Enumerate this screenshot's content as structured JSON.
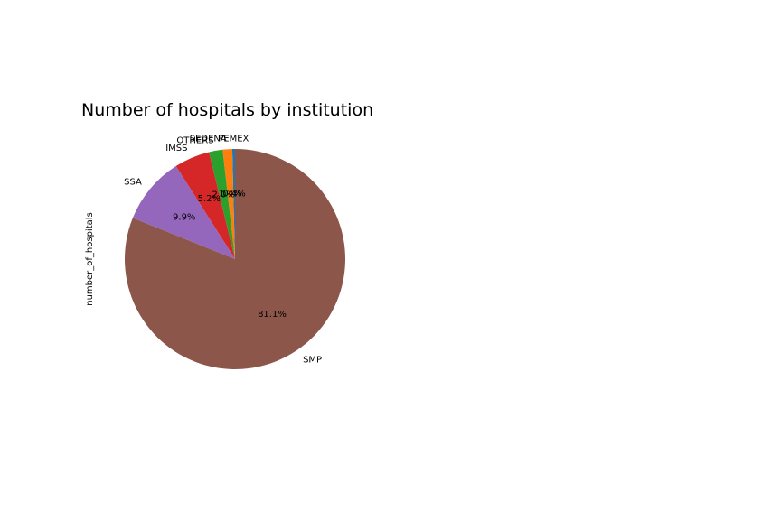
{
  "chart_data": {
    "type": "pie",
    "title": "Number of hospitals by institution",
    "ylabel": "number_of_hospitals",
    "slices": [
      {
        "label": "PEMEX",
        "pct_label": "0.4%",
        "value": 0.4,
        "color": "#1f77b4"
      },
      {
        "label": "SEDENA",
        "pct_label": "1.4%",
        "value": 1.4,
        "color": "#ff7f0e"
      },
      {
        "label": "OTHERS",
        "pct_label": "2.0%",
        "value": 2.0,
        "color": "#2ca02c"
      },
      {
        "label": "IMSS",
        "pct_label": "5.2%",
        "value": 5.2,
        "color": "#d62728"
      },
      {
        "label": "SSA",
        "pct_label": "9.9%",
        "value": 9.9,
        "color": "#9467bd"
      },
      {
        "label": "SMP",
        "pct_label": "81.1%",
        "value": 81.1,
        "color": "#8c564b"
      }
    ],
    "start_angle_deg": 90,
    "direction": "counterclockwise",
    "legend": "none"
  }
}
